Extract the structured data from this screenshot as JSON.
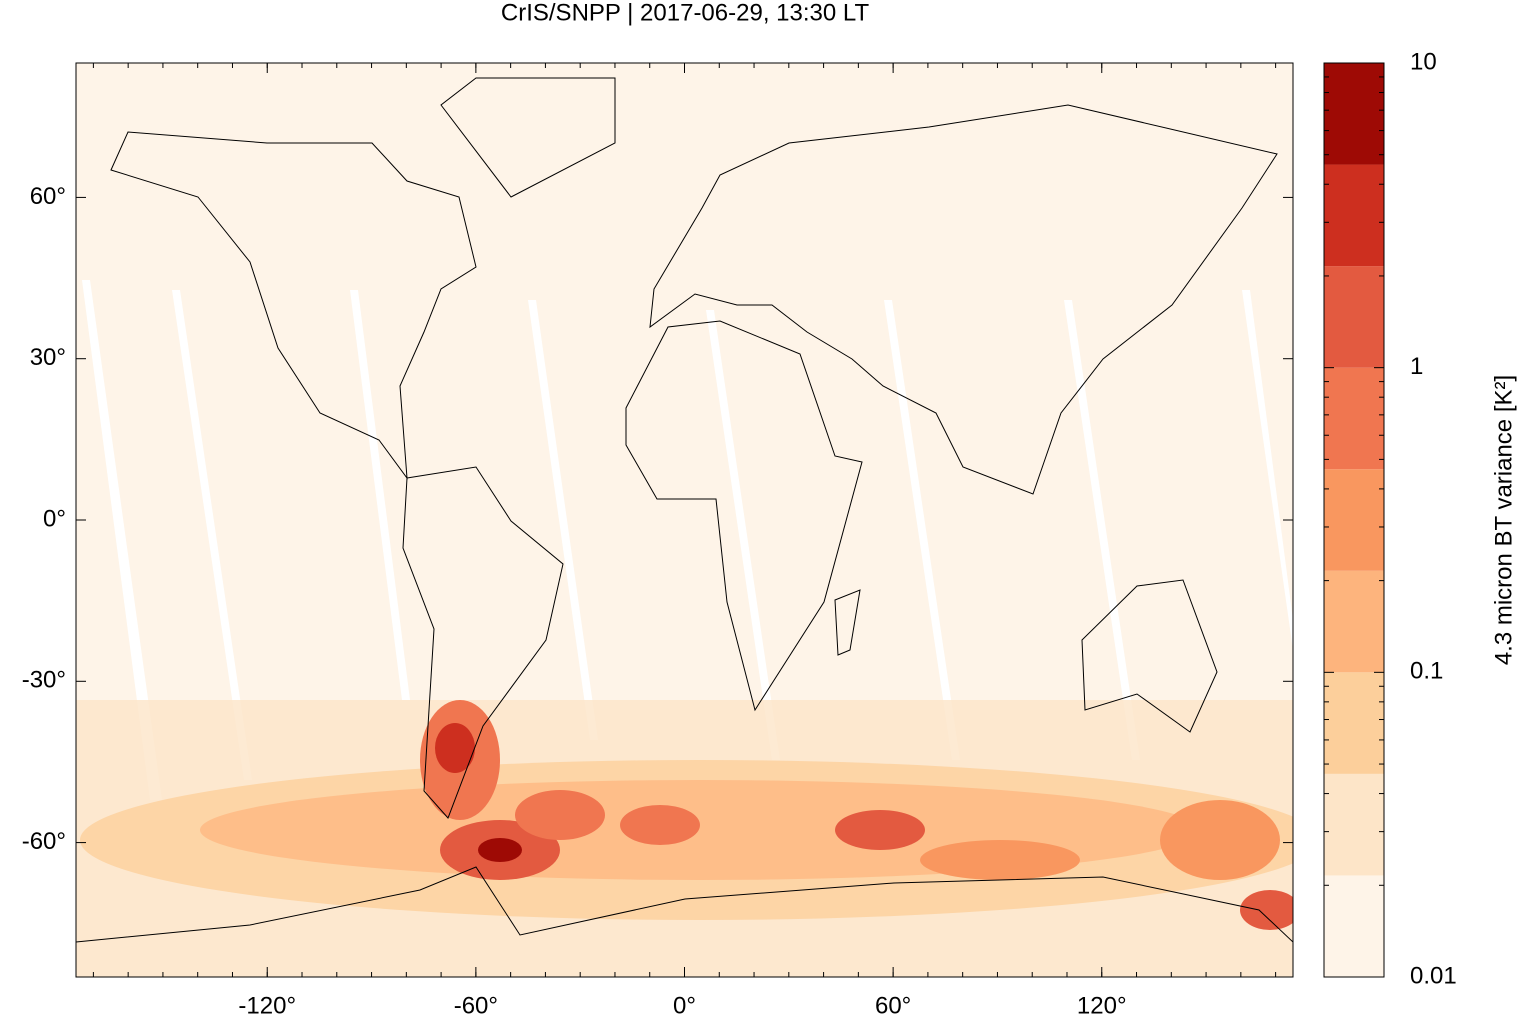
{
  "chart_data": {
    "type": "map",
    "title": "CrIS/SNPP | 2017-06-29, 13:30 LT",
    "xlim": [
      -175,
      175
    ],
    "ylim": [
      -85,
      85
    ],
    "xticks": [
      {
        "value": -120,
        "label": "-120°"
      },
      {
        "value": -60,
        "label": "-60°"
      },
      {
        "value": 0,
        "label": "0°"
      },
      {
        "value": 60,
        "label": "60°"
      },
      {
        "value": 120,
        "label": "120°"
      }
    ],
    "yticks": [
      {
        "value": -60,
        "label": "-60°"
      },
      {
        "value": -30,
        "label": "-30°"
      },
      {
        "value": 0,
        "label": "0°"
      },
      {
        "value": 30,
        "label": "30°"
      },
      {
        "value": 60,
        "label": "60°"
      }
    ],
    "colorbar": {
      "label": "4.3 micron BT variance [K²]",
      "log": true,
      "lim": [
        0.01,
        10
      ],
      "ticks": [
        0.01,
        0.1,
        1,
        10
      ],
      "colors": [
        "#fef4e8",
        "#fde5c8",
        "#fccf9b",
        "#fdb47d",
        "#f9975f",
        "#f07650",
        "#e35a40",
        "#cd2f1f",
        "#9e0a05"
      ]
    }
  }
}
